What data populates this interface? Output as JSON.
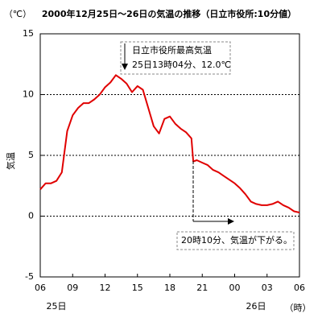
{
  "chart_data": {
    "type": "line",
    "title": "2000年12月25日～26日の気温の推移（日立市役所:10分値）",
    "yunit": "（℃）",
    "ylabel": "気温",
    "xlabel": "（時）",
    "day_labels": [
      "25日",
      "26日"
    ],
    "color": "#e00000",
    "x": [
      0,
      0.5,
      1,
      1.5,
      2,
      2.5,
      3,
      3.5,
      4,
      4.5,
      5,
      5.5,
      6,
      6.5,
      7,
      7.5,
      8,
      8.5,
      9,
      9.5,
      10,
      10.5,
      11,
      11.5,
      12,
      12.5,
      13,
      13.5,
      14,
      14.17,
      14.5,
      15,
      15.5,
      16,
      16.5,
      17,
      17.5,
      18,
      18.5,
      19,
      19.5,
      20,
      20.5,
      21,
      21.5,
      22,
      22.5,
      23,
      23.5,
      24
    ],
    "values": [
      2.2,
      2.7,
      2.7,
      2.9,
      3.6,
      7.0,
      8.3,
      8.9,
      9.3,
      9.3,
      9.6,
      10.0,
      10.6,
      11.0,
      11.6,
      11.3,
      10.9,
      10.2,
      10.7,
      10.4,
      8.9,
      7.4,
      6.8,
      8.0,
      8.2,
      7.6,
      7.2,
      6.9,
      6.4,
      4.5,
      4.6,
      4.4,
      4.2,
      3.8,
      3.6,
      3.3,
      3.0,
      2.7,
      2.3,
      1.8,
      1.2,
      1.0,
      0.9,
      0.9,
      1.0,
      1.2,
      0.9,
      0.7,
      0.4,
      0.3
    ],
    "xlim": [
      0,
      24
    ],
    "xticks": [
      {
        "value": 0,
        "label": "06"
      },
      {
        "value": 3,
        "label": "09"
      },
      {
        "value": 6,
        "label": "12"
      },
      {
        "value": 9,
        "label": "15"
      },
      {
        "value": 12,
        "label": "18"
      },
      {
        "value": 15,
        "label": "21"
      },
      {
        "value": 18,
        "label": "00"
      },
      {
        "value": 21,
        "label": "03"
      },
      {
        "value": 24,
        "label": "06"
      }
    ],
    "ylim": [
      -5,
      15
    ],
    "yticks": [
      15,
      10,
      5,
      0,
      -5
    ],
    "grid": true,
    "annotations": [
      {
        "lines": [
          "日立市役所最高気温",
          "25日13時04分、12.0℃"
        ]
      },
      {
        "lines": [
          "20時10分、気温が下がる。"
        ]
      }
    ]
  }
}
